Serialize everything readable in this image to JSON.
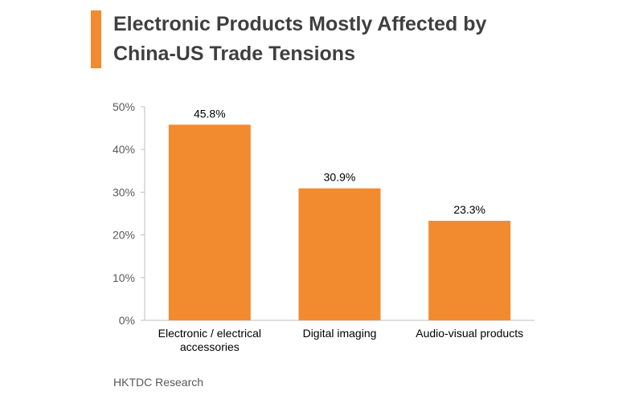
{
  "header": {
    "title_line1": "Electronic Products Mostly Affected by",
    "title_line2": "China-US Trade Tensions",
    "accent_color": "#f28a30"
  },
  "chart_data": {
    "type": "bar",
    "categories": [
      [
        "Electronic / electrical",
        "accessories"
      ],
      [
        "Digital imaging"
      ],
      [
        "Audio-visual products"
      ]
    ],
    "values": [
      45.8,
      30.9,
      23.3
    ],
    "data_labels": [
      "45.8%",
      "30.9%",
      "23.3%"
    ],
    "ylim": [
      0,
      50
    ],
    "yticks": [
      0,
      10,
      20,
      30,
      40,
      50
    ],
    "ytick_labels": [
      "0%",
      "10%",
      "20%",
      "30%",
      "40%",
      "50%"
    ],
    "bar_color": "#f28a30",
    "grid": false,
    "legend": "none"
  },
  "footer": {
    "source": "HKTDC Research"
  }
}
